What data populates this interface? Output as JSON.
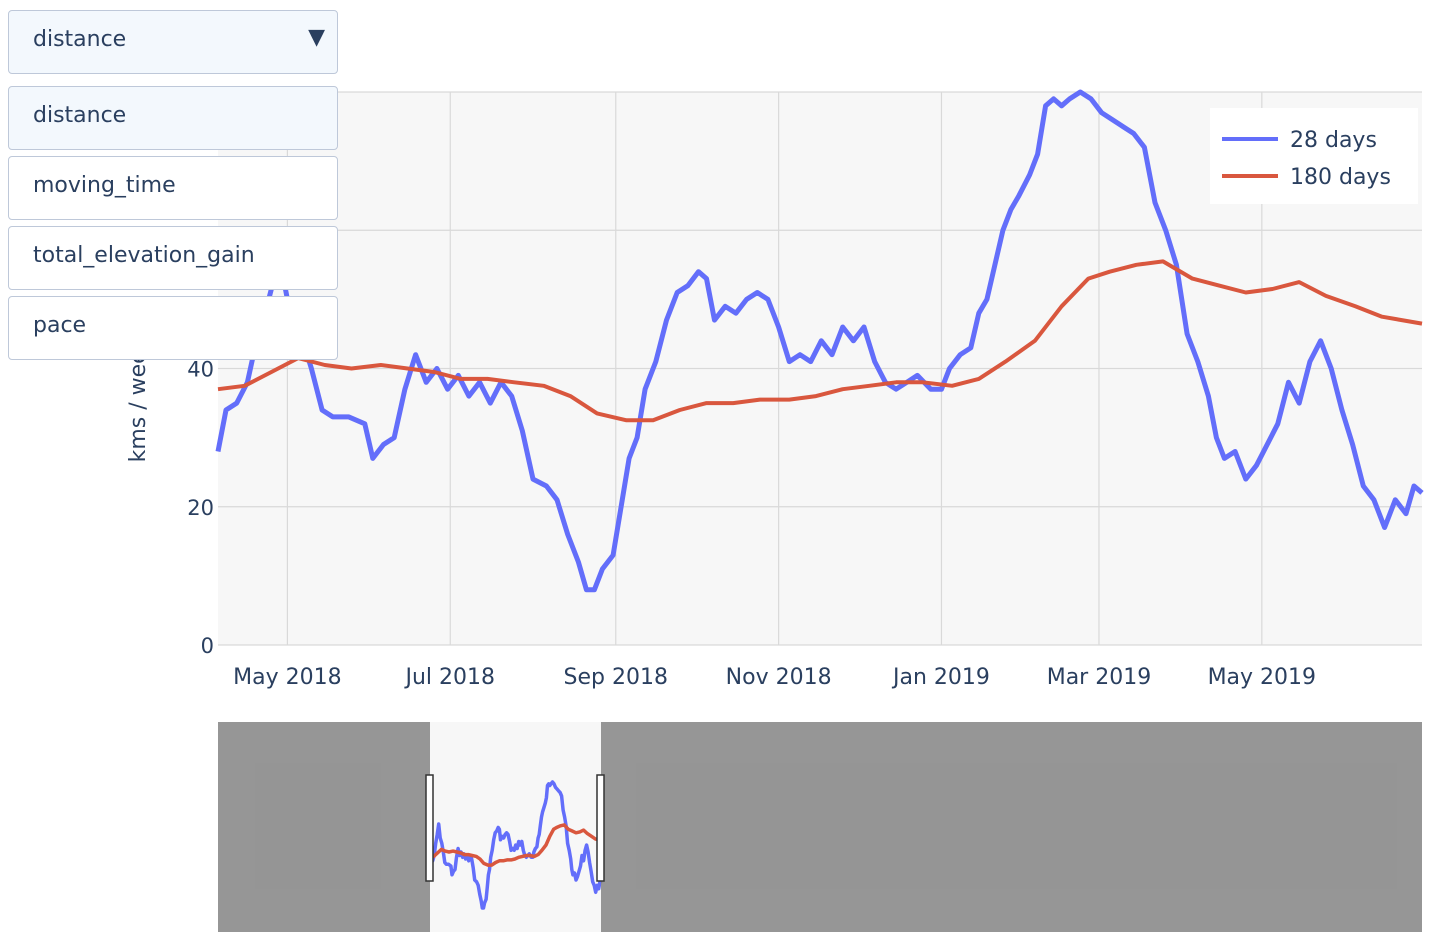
{
  "dropdown": {
    "selected": "distance",
    "arrow_icon": "triangle-down-icon",
    "options": [
      "distance",
      "moving_time",
      "total_elevation_gain",
      "pace"
    ]
  },
  "colors": {
    "series_28": "#636efa",
    "series_180": "#d9573e",
    "plot_bg": "#f7f7f7",
    "grid": "#d9d9d9",
    "text": "#2a3f5f"
  },
  "chart_data": {
    "type": "line",
    "title": "",
    "xlabel": "",
    "ylabel": "kms / week",
    "ylim": [
      0,
      80
    ],
    "xlim": [
      "2018-04-05",
      "2019-06-30"
    ],
    "y_ticks": [
      0,
      20,
      40
    ],
    "x_ticks": [
      {
        "date": "2018-05-01",
        "label": "May 2018"
      },
      {
        "date": "2018-07-01",
        "label": "Jul 2018"
      },
      {
        "date": "2018-09-01",
        "label": "Sep 2018"
      },
      {
        "date": "2018-11-01",
        "label": "Nov 2018"
      },
      {
        "date": "2019-01-01",
        "label": "Jan 2019"
      },
      {
        "date": "2019-03-01",
        "label": "Mar 2019"
      },
      {
        "date": "2019-05-01",
        "label": "May 2019"
      }
    ],
    "grid": true,
    "legend_position": "top-right",
    "series": [
      {
        "name": "28 days",
        "points": [
          [
            "2018-04-05",
            28
          ],
          [
            "2018-04-08",
            34
          ],
          [
            "2018-04-12",
            35
          ],
          [
            "2018-04-16",
            38
          ],
          [
            "2018-04-20",
            45
          ],
          [
            "2018-04-24",
            50
          ],
          [
            "2018-04-28",
            56
          ],
          [
            "2018-05-02",
            48
          ],
          [
            "2018-05-06",
            45
          ],
          [
            "2018-05-10",
            40
          ],
          [
            "2018-05-14",
            34
          ],
          [
            "2018-05-18",
            33
          ],
          [
            "2018-05-24",
            33
          ],
          [
            "2018-05-30",
            32
          ],
          [
            "2018-06-02",
            27
          ],
          [
            "2018-06-06",
            29
          ],
          [
            "2018-06-10",
            30
          ],
          [
            "2018-06-14",
            37
          ],
          [
            "2018-06-18",
            42
          ],
          [
            "2018-06-22",
            38
          ],
          [
            "2018-06-26",
            40
          ],
          [
            "2018-06-30",
            37
          ],
          [
            "2018-07-04",
            39
          ],
          [
            "2018-07-08",
            36
          ],
          [
            "2018-07-12",
            38
          ],
          [
            "2018-07-16",
            35
          ],
          [
            "2018-07-20",
            38
          ],
          [
            "2018-07-24",
            36
          ],
          [
            "2018-07-28",
            31
          ],
          [
            "2018-08-01",
            24
          ],
          [
            "2018-08-06",
            23
          ],
          [
            "2018-08-10",
            21
          ],
          [
            "2018-08-14",
            16
          ],
          [
            "2018-08-18",
            12
          ],
          [
            "2018-08-21",
            8
          ],
          [
            "2018-08-24",
            8
          ],
          [
            "2018-08-27",
            11
          ],
          [
            "2018-08-31",
            13
          ],
          [
            "2018-09-03",
            20
          ],
          [
            "2018-09-06",
            27
          ],
          [
            "2018-09-09",
            30
          ],
          [
            "2018-09-12",
            37
          ],
          [
            "2018-09-16",
            41
          ],
          [
            "2018-09-20",
            47
          ],
          [
            "2018-09-24",
            51
          ],
          [
            "2018-09-28",
            52
          ],
          [
            "2018-10-02",
            54
          ],
          [
            "2018-10-05",
            53
          ],
          [
            "2018-10-08",
            47
          ],
          [
            "2018-10-12",
            49
          ],
          [
            "2018-10-16",
            48
          ],
          [
            "2018-10-20",
            50
          ],
          [
            "2018-10-24",
            51
          ],
          [
            "2018-10-28",
            50
          ],
          [
            "2018-11-01",
            46
          ],
          [
            "2018-11-05",
            41
          ],
          [
            "2018-11-09",
            42
          ],
          [
            "2018-11-13",
            41
          ],
          [
            "2018-11-17",
            44
          ],
          [
            "2018-11-21",
            42
          ],
          [
            "2018-11-25",
            46
          ],
          [
            "2018-11-29",
            44
          ],
          [
            "2018-12-03",
            46
          ],
          [
            "2018-12-07",
            41
          ],
          [
            "2018-12-11",
            38
          ],
          [
            "2018-12-15",
            37
          ],
          [
            "2018-12-19",
            38
          ],
          [
            "2018-12-23",
            39
          ],
          [
            "2018-12-28",
            37
          ],
          [
            "2019-01-01",
            37
          ],
          [
            "2019-01-04",
            40
          ],
          [
            "2019-01-08",
            42
          ],
          [
            "2019-01-12",
            43
          ],
          [
            "2019-01-15",
            48
          ],
          [
            "2019-01-18",
            50
          ],
          [
            "2019-01-21",
            55
          ],
          [
            "2019-01-24",
            60
          ],
          [
            "2019-01-27",
            63
          ],
          [
            "2019-01-30",
            65
          ],
          [
            "2019-02-03",
            68
          ],
          [
            "2019-02-06",
            71
          ],
          [
            "2019-02-09",
            78
          ],
          [
            "2019-02-12",
            79
          ],
          [
            "2019-02-15",
            78
          ],
          [
            "2019-02-18",
            79
          ],
          [
            "2019-02-22",
            80
          ],
          [
            "2019-02-26",
            79
          ],
          [
            "2019-03-02",
            77
          ],
          [
            "2019-03-06",
            76
          ],
          [
            "2019-03-10",
            75
          ],
          [
            "2019-03-14",
            74
          ],
          [
            "2019-03-18",
            72
          ],
          [
            "2019-03-22",
            64
          ],
          [
            "2019-03-26",
            60
          ],
          [
            "2019-03-30",
            55
          ],
          [
            "2019-04-03",
            45
          ],
          [
            "2019-04-07",
            41
          ],
          [
            "2019-04-11",
            36
          ],
          [
            "2019-04-14",
            30
          ],
          [
            "2019-04-17",
            27
          ],
          [
            "2019-04-21",
            28
          ],
          [
            "2019-04-25",
            24
          ],
          [
            "2019-04-29",
            26
          ],
          [
            "2019-05-03",
            29
          ],
          [
            "2019-05-07",
            32
          ],
          [
            "2019-05-11",
            38
          ],
          [
            "2019-05-15",
            35
          ],
          [
            "2019-05-19",
            41
          ],
          [
            "2019-05-23",
            44
          ],
          [
            "2019-05-27",
            40
          ],
          [
            "2019-05-31",
            34
          ],
          [
            "2019-06-04",
            29
          ],
          [
            "2019-06-08",
            23
          ],
          [
            "2019-06-12",
            21
          ],
          [
            "2019-06-16",
            17
          ],
          [
            "2019-06-20",
            21
          ],
          [
            "2019-06-24",
            19
          ],
          [
            "2019-06-27",
            23
          ],
          [
            "2019-06-30",
            22
          ]
        ]
      },
      {
        "name": "180 days",
        "points": [
          [
            "2018-04-05",
            37
          ],
          [
            "2018-04-15",
            37.5
          ],
          [
            "2018-04-25",
            39.5
          ],
          [
            "2018-05-05",
            41.5
          ],
          [
            "2018-05-15",
            40.5
          ],
          [
            "2018-05-25",
            40
          ],
          [
            "2018-06-05",
            40.5
          ],
          [
            "2018-06-15",
            40
          ],
          [
            "2018-06-25",
            39.5
          ],
          [
            "2018-07-05",
            38.5
          ],
          [
            "2018-07-15",
            38.5
          ],
          [
            "2018-07-25",
            38
          ],
          [
            "2018-08-05",
            37.5
          ],
          [
            "2018-08-15",
            36
          ],
          [
            "2018-08-25",
            33.5
          ],
          [
            "2018-09-05",
            32.5
          ],
          [
            "2018-09-15",
            32.5
          ],
          [
            "2018-09-25",
            34
          ],
          [
            "2018-10-05",
            35
          ],
          [
            "2018-10-15",
            35
          ],
          [
            "2018-10-25",
            35.5
          ],
          [
            "2018-11-05",
            35.5
          ],
          [
            "2018-11-15",
            36
          ],
          [
            "2018-11-25",
            37
          ],
          [
            "2018-12-05",
            37.5
          ],
          [
            "2018-12-15",
            38
          ],
          [
            "2018-12-25",
            38
          ],
          [
            "2019-01-05",
            37.5
          ],
          [
            "2019-01-15",
            38.5
          ],
          [
            "2019-01-25",
            41
          ],
          [
            "2019-02-05",
            44
          ],
          [
            "2019-02-15",
            49
          ],
          [
            "2019-02-25",
            53
          ],
          [
            "2019-03-05",
            54
          ],
          [
            "2019-03-15",
            55
          ],
          [
            "2019-03-25",
            55.5
          ],
          [
            "2019-04-05",
            53
          ],
          [
            "2019-04-15",
            52
          ],
          [
            "2019-04-25",
            51
          ],
          [
            "2019-05-05",
            51.5
          ],
          [
            "2019-05-15",
            52.5
          ],
          [
            "2019-05-25",
            50.5
          ],
          [
            "2019-06-05",
            49
          ],
          [
            "2019-06-15",
            47.5
          ],
          [
            "2019-06-30",
            46.5
          ]
        ]
      }
    ]
  }
}
